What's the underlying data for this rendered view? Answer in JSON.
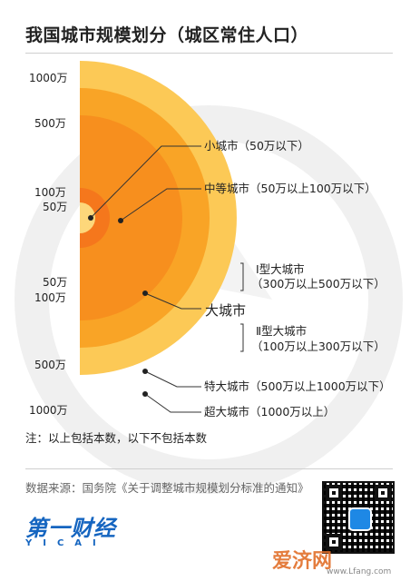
{
  "title": "我国城市规模划分（城区常住人口）",
  "scale_labels": {
    "top": [
      "1000万",
      "500万",
      "100万",
      "50万"
    ],
    "bottom": [
      "50万",
      "100万",
      "500万",
      "1000万"
    ]
  },
  "categories": {
    "small": "小城市（50万以下）",
    "medium": "中等城市（50万以上100万以下）",
    "large": "大城市",
    "large_type1": "Ⅰ型大城市",
    "large_type1_range": "（300万以上500万以下）",
    "large_type2": "Ⅱ型大城市",
    "large_type2_range": "（100万以上300万以下）",
    "extra_large": "特大城市（500万以上1000万以下）",
    "super_large": "超大城市（1000万以上）"
  },
  "note": "注：以上包括本数，以下不包括本数",
  "source": "数据来源：国务院《关于调整城市规模划分标准的通知》",
  "brand": {
    "name": "第一财经",
    "sub": "YICAI"
  },
  "watermark": {
    "name": "爱济网",
    "url": "www.Lfang.com"
  },
  "colors": {
    "super": "#fcc956",
    "extra": "#f9a426",
    "large": "#f78f1e",
    "medium": "#f5771c",
    "small": "#fdd77a",
    "leader": "#333333",
    "dot": "#222222"
  }
}
